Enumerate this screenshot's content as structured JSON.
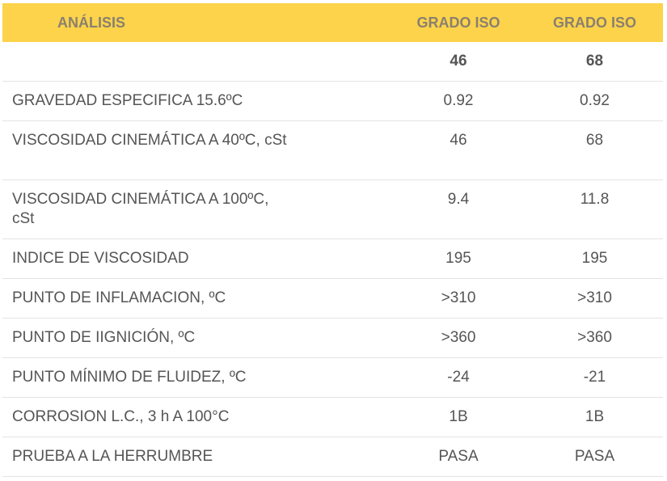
{
  "table": {
    "header": {
      "col1": "ANÁLISIS",
      "col2": "GRADO ISO",
      "col3": "GRADO ISO"
    },
    "grades": {
      "col1": "",
      "col2": "46",
      "col3": "68"
    },
    "rows": [
      {
        "label": "GRAVEDAD ESPECIFICA 15.6ºC",
        "v46": "0.92",
        "v68": "0.92"
      },
      {
        "label": "VISCOSIDAD CINEMÁTICA A 40ºC, cSt",
        "v46": "46",
        "v68": "68"
      },
      {
        "label": "VISCOSIDAD CINEMÁTICA A 100ºC, cSt",
        "v46": "9.4",
        "v68": "11.8"
      },
      {
        "label": "INDICE DE VISCOSIDAD",
        "v46": "195",
        "v68": "195"
      },
      {
        "label": "PUNTO DE INFLAMACION, ºC",
        "v46": ">310",
        "v68": ">310"
      },
      {
        "label": "PUNTO DE IIGNICIÓN, ºC",
        "v46": ">360",
        "v68": ">360"
      },
      {
        "label": "PUNTO MÍNIMO DE FLUIDEZ, ºC",
        "v46": "-24",
        "v68": "-21"
      },
      {
        "label": "CORROSION L.C., 3 h A 100°C",
        "v46": "1B",
        "v68": "1B"
      },
      {
        "label": "PRUEBA A LA HERRUMBRE",
        "v46": "PASA",
        "v68": "PASA"
      }
    ]
  },
  "colors": {
    "header_bg": "#fcd34a",
    "header_text": "#8a8070",
    "body_text": "#555555",
    "row_border": "#e3e3e3"
  }
}
